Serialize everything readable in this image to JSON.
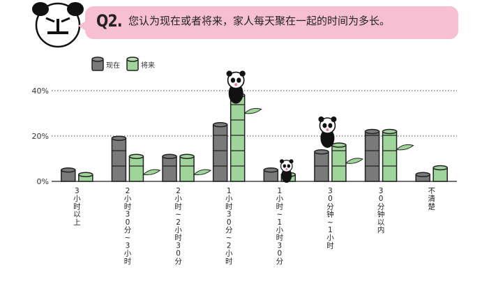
{
  "question": {
    "number": "Q2.",
    "text": "您认为现在或者将来，家人每天聚在一起的时间为多长。"
  },
  "colors": {
    "current_fill": "#7a7a7a",
    "current_stroke": "#222222",
    "future_fill": "#9fd49a",
    "future_stroke": "#222222",
    "bubble": "#f7bfd2",
    "leaf": "#9fd49a"
  },
  "icons": [
    "panda-mascot-icon",
    "panda-icon",
    "bamboo-leaf-icon"
  ],
  "chart_data": {
    "type": "bar",
    "title": "",
    "xlabel": "",
    "ylabel": "",
    "ylim": [
      0,
      40
    ],
    "yticks": [
      "0%",
      "20%",
      "40%"
    ],
    "grid": true,
    "legend_placement": "top-left",
    "categories": [
      "3小时以上",
      "2小时30分~3小时",
      "2小时~2小时30分",
      "1小时30分~2小时",
      "1小时~1小时30分",
      "30分钟~1小时",
      "30分钟以内",
      "不清楚"
    ],
    "series": [
      {
        "name": "现在",
        "values": [
          5,
          19,
          11,
          25,
          5,
          13,
          22,
          3
        ]
      },
      {
        "name": "将来",
        "values": [
          3,
          11,
          11,
          38,
          3,
          16,
          22,
          6
        ]
      }
    ]
  }
}
